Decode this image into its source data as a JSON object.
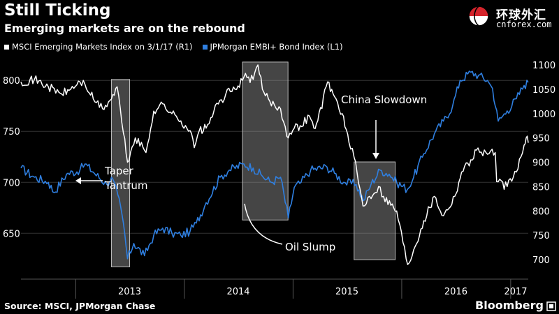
{
  "header": {
    "title": "Still Ticking",
    "subtitle": "Emerging markets are on the rebound"
  },
  "watermark": {
    "chinese": "环球外汇",
    "url": "cnforex.com",
    "icon": "globe-logo-icon"
  },
  "footer": {
    "source": "Source: MSCI, JPMorgan Chase",
    "brand": "Bloomberg",
    "icon": "bloomberg-square-icon"
  },
  "colors": {
    "background": "#000000",
    "msci": "#ffffff",
    "embi": "#2f7fe0",
    "highlight": "#9a9a9a"
  },
  "chart_data": {
    "type": "line",
    "title": "Still Ticking",
    "subtitle": "Emerging markets are on the rebound",
    "legend_placement": "top-left",
    "grid": true,
    "x_range": [
      "2012-07-01",
      "2017-03-01"
    ],
    "x_ticks": [
      "2013",
      "2014",
      "2015",
      "2016",
      "2017"
    ],
    "y_left": {
      "ticks": [
        650,
        700,
        750,
        800
      ],
      "range": [
        605,
        820
      ]
    },
    "y_right": {
      "ticks": [
        700,
        750,
        800,
        850,
        900,
        950,
        1000,
        1050,
        1100
      ],
      "range": [
        660,
        1110
      ]
    },
    "series": [
      {
        "name": "MSCI Emerging Markets Index  on 3/1/17 (R1)",
        "axis": "right",
        "color": "#ffffff",
        "points": [
          [
            "2012-07-01",
            1065
          ],
          [
            "2012-08-15",
            1070
          ],
          [
            "2012-10-01",
            1055
          ],
          [
            "2012-11-15",
            1040
          ],
          [
            "2012-12-15",
            1050
          ],
          [
            "2013-01-15",
            1065
          ],
          [
            "2013-02-01",
            1060
          ],
          [
            "2013-03-01",
            1030
          ],
          [
            "2013-04-01",
            1010
          ],
          [
            "2013-05-01",
            1030
          ],
          [
            "2013-05-20",
            1055
          ],
          [
            "2013-06-10",
            960
          ],
          [
            "2013-06-24",
            900
          ],
          [
            "2013-07-20",
            950
          ],
          [
            "2013-08-25",
            920
          ],
          [
            "2013-09-20",
            1005
          ],
          [
            "2013-10-20",
            1020
          ],
          [
            "2013-11-20",
            1000
          ],
          [
            "2013-12-20",
            985
          ],
          [
            "2014-01-20",
            965
          ],
          [
            "2014-02-03",
            930
          ],
          [
            "2014-02-20",
            965
          ],
          [
            "2014-03-15",
            970
          ],
          [
            "2014-04-10",
            1005
          ],
          [
            "2014-05-20",
            1040
          ],
          [
            "2014-06-20",
            1050
          ],
          [
            "2014-07-20",
            1075
          ],
          [
            "2014-08-20",
            1070
          ],
          [
            "2014-09-05",
            1100
          ],
          [
            "2014-09-20",
            1050
          ],
          [
            "2014-10-15",
            1025
          ],
          [
            "2014-11-20",
            1010
          ],
          [
            "2014-12-16",
            950
          ],
          [
            "2015-01-05",
            970
          ],
          [
            "2015-01-25",
            975
          ],
          [
            "2015-02-25",
            995
          ],
          [
            "2015-03-12",
            970
          ],
          [
            "2015-03-25",
            985
          ],
          [
            "2015-04-27",
            1065
          ],
          [
            "2015-05-20",
            1035
          ],
          [
            "2015-06-15",
            1000
          ],
          [
            "2015-07-08",
            940
          ],
          [
            "2015-07-25",
            910
          ],
          [
            "2015-08-24",
            810
          ],
          [
            "2015-09-15",
            830
          ],
          [
            "2015-10-15",
            850
          ],
          [
            "2015-11-01",
            830
          ],
          [
            "2015-12-15",
            800
          ],
          [
            "2016-01-21",
            690
          ],
          [
            "2016-02-10",
            720
          ],
          [
            "2016-03-15",
            780
          ],
          [
            "2016-04-20",
            830
          ],
          [
            "2016-05-20",
            790
          ],
          [
            "2016-06-27",
            830
          ],
          [
            "2016-07-20",
            880
          ],
          [
            "2016-08-20",
            905
          ],
          [
            "2016-09-08",
            925
          ],
          [
            "2016-10-10",
            920
          ],
          [
            "2016-11-10",
            920
          ],
          [
            "2016-11-15",
            860
          ],
          [
            "2016-12-20",
            850
          ],
          [
            "2017-01-20",
            880
          ],
          [
            "2017-02-15",
            935
          ],
          [
            "2017-02-22",
            950
          ],
          [
            "2017-03-01",
            940
          ]
        ]
      },
      {
        "name": "JPMorgan EMBI+ Bond Index (L1)",
        "axis": "left",
        "color": "#2f7fe0",
        "points": [
          [
            "2012-07-01",
            714
          ],
          [
            "2012-08-15",
            705
          ],
          [
            "2012-10-01",
            700
          ],
          [
            "2012-10-20",
            690
          ],
          [
            "2012-12-01",
            708
          ],
          [
            "2013-01-15",
            712
          ],
          [
            "2013-02-01",
            718
          ],
          [
            "2013-03-01",
            710
          ],
          [
            "2013-04-15",
            698
          ],
          [
            "2013-05-01",
            705
          ],
          [
            "2013-05-22",
            688
          ],
          [
            "2013-06-10",
            660
          ],
          [
            "2013-06-24",
            625
          ],
          [
            "2013-07-15",
            640
          ],
          [
            "2013-08-20",
            628
          ],
          [
            "2013-09-20",
            648
          ],
          [
            "2013-10-20",
            655
          ],
          [
            "2013-11-20",
            650
          ],
          [
            "2013-12-20",
            648
          ],
          [
            "2014-01-20",
            652
          ],
          [
            "2014-02-10",
            660
          ],
          [
            "2014-03-15",
            680
          ],
          [
            "2014-05-01",
            705
          ],
          [
            "2014-06-01",
            712
          ],
          [
            "2014-07-20",
            718
          ],
          [
            "2014-08-20",
            714
          ],
          [
            "2014-09-20",
            706
          ],
          [
            "2014-10-20",
            700
          ],
          [
            "2014-11-20",
            705
          ],
          [
            "2014-12-16",
            665
          ],
          [
            "2015-01-05",
            695
          ],
          [
            "2015-01-28",
            700
          ],
          [
            "2015-03-01",
            712
          ],
          [
            "2015-04-25",
            715
          ],
          [
            "2015-05-20",
            709
          ],
          [
            "2015-06-20",
            700
          ],
          [
            "2015-08-01",
            698
          ],
          [
            "2015-08-25",
            682
          ],
          [
            "2015-09-20",
            698
          ],
          [
            "2015-10-20",
            712
          ],
          [
            "2015-11-20",
            708
          ],
          [
            "2015-12-15",
            700
          ],
          [
            "2016-01-20",
            693
          ],
          [
            "2016-02-10",
            705
          ],
          [
            "2016-03-15",
            728
          ],
          [
            "2016-04-20",
            748
          ],
          [
            "2016-05-20",
            760
          ],
          [
            "2016-06-20",
            775
          ],
          [
            "2016-07-15",
            800
          ],
          [
            "2016-08-20",
            808
          ],
          [
            "2016-09-15",
            805
          ],
          [
            "2016-10-15",
            800
          ],
          [
            "2016-11-01",
            792
          ],
          [
            "2016-11-20",
            760
          ],
          [
            "2016-12-20",
            770
          ],
          [
            "2017-01-20",
            782
          ],
          [
            "2017-02-15",
            795
          ],
          [
            "2017-03-01",
            798
          ]
        ]
      }
    ],
    "highlights": [
      {
        "start": "2013-05-01",
        "end": "2013-07-01",
        "y_top": 801,
        "y_bottom": 617
      },
      {
        "start": "2014-07-15",
        "end": "2014-12-15",
        "y_top": 818,
        "y_bottom": 663
      },
      {
        "start": "2015-07-25",
        "end": "2015-12-10",
        "y_top": 720,
        "y_bottom": 624
      }
    ],
    "annotations": [
      {
        "label": "Taper\nTantrum"
      },
      {
        "label": "Oil Slump"
      },
      {
        "label": "China Slowdown"
      }
    ]
  }
}
